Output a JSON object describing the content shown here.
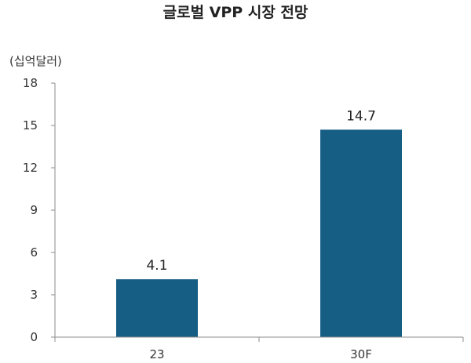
{
  "chart_data": {
    "type": "bar",
    "title": "글로벌 VPP 시장 전망",
    "unit_label": "(십억달러)",
    "categories": [
      "23",
      "30F"
    ],
    "values": [
      4.1,
      14.7
    ],
    "value_labels": [
      "4.1",
      "14.7"
    ],
    "ylim": [
      0,
      18
    ],
    "yticks": [
      0,
      3,
      6,
      9,
      12,
      15,
      18
    ],
    "grid": false,
    "bar_color": "#175e85"
  }
}
